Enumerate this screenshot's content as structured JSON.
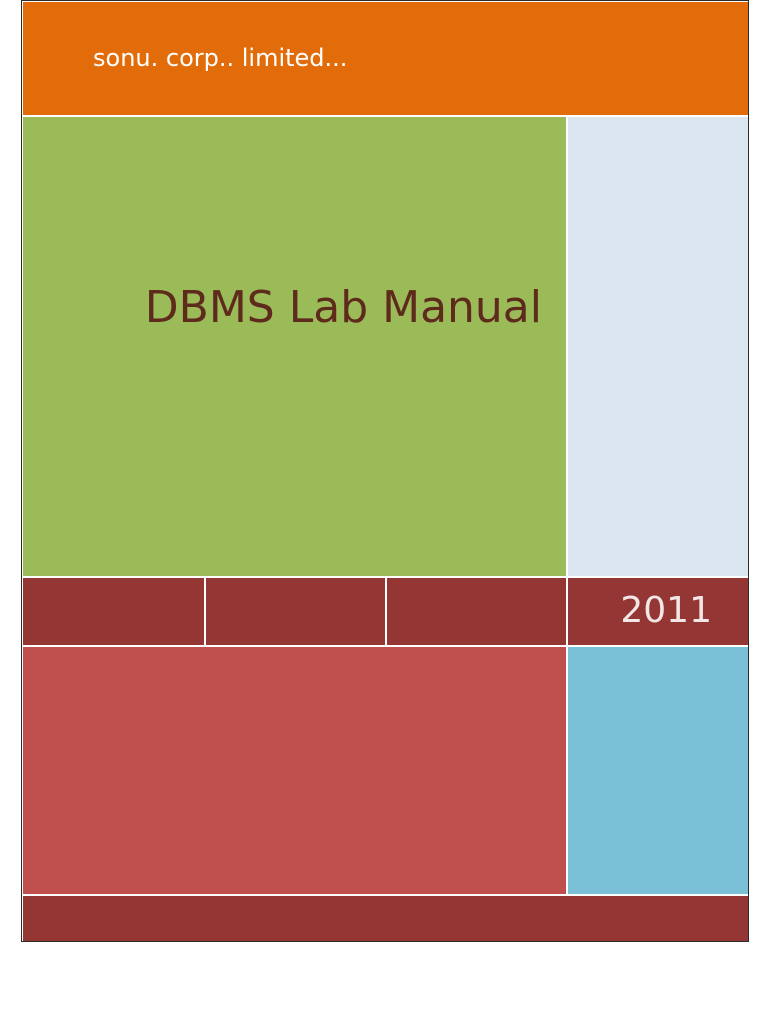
{
  "cover": {
    "company": "sonu. corp.. limited...",
    "title": "DBMS Lab Manual",
    "year": "2011"
  },
  "colors": {
    "header": "#e36c0a",
    "title_panel": "#9bbb59",
    "side_panel": "#dce6f1",
    "band": "#943634",
    "lower_panel": "#c0504d",
    "accent_panel": "#7ac0d6",
    "title_text": "#5e2a1c"
  }
}
